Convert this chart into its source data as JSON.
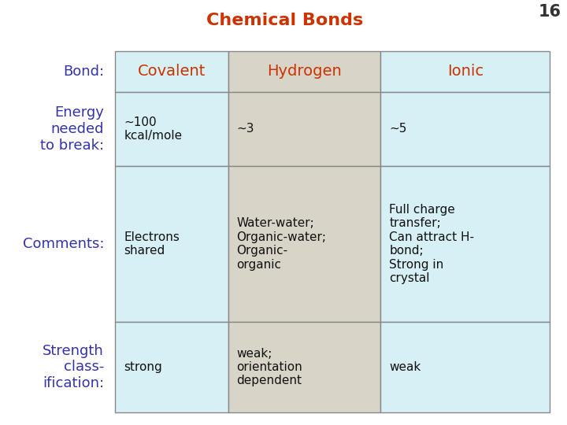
{
  "title": "Chemical Bonds",
  "title_color": "#cc3300",
  "page_number": "16",
  "page_number_color": "#333333",
  "row_labels": [
    "Bond:",
    "Energy\nneeded\nto break:",
    "Comments:",
    "Strength\nclass-\nification:"
  ],
  "row_label_color": "#3333aa",
  "col_headers": [
    "Covalent",
    "Hydrogen",
    "Ionic"
  ],
  "col_header_color": "#cc3300",
  "col_bg_colors": [
    "#d6f0f5",
    "#d8d4c8",
    "#d6f0f5"
  ],
  "table_border_color": "#888888",
  "cell_data": [
    [
      "~100\nkcal/mole",
      "~3",
      "~5"
    ],
    [
      "Electrons\nshared",
      "Water-water;\nOrganic-water;\nOrganic-\norganic",
      "Full charge\ntransfer;\nCan attract H-\nbond;\nStrong in\ncrystal"
    ],
    [
      "strong",
      "weak;\norientation\ndependent",
      "weak"
    ]
  ],
  "cell_text_color": "#111111",
  "figsize": [
    7.2,
    5.4
  ],
  "dpi": 100
}
